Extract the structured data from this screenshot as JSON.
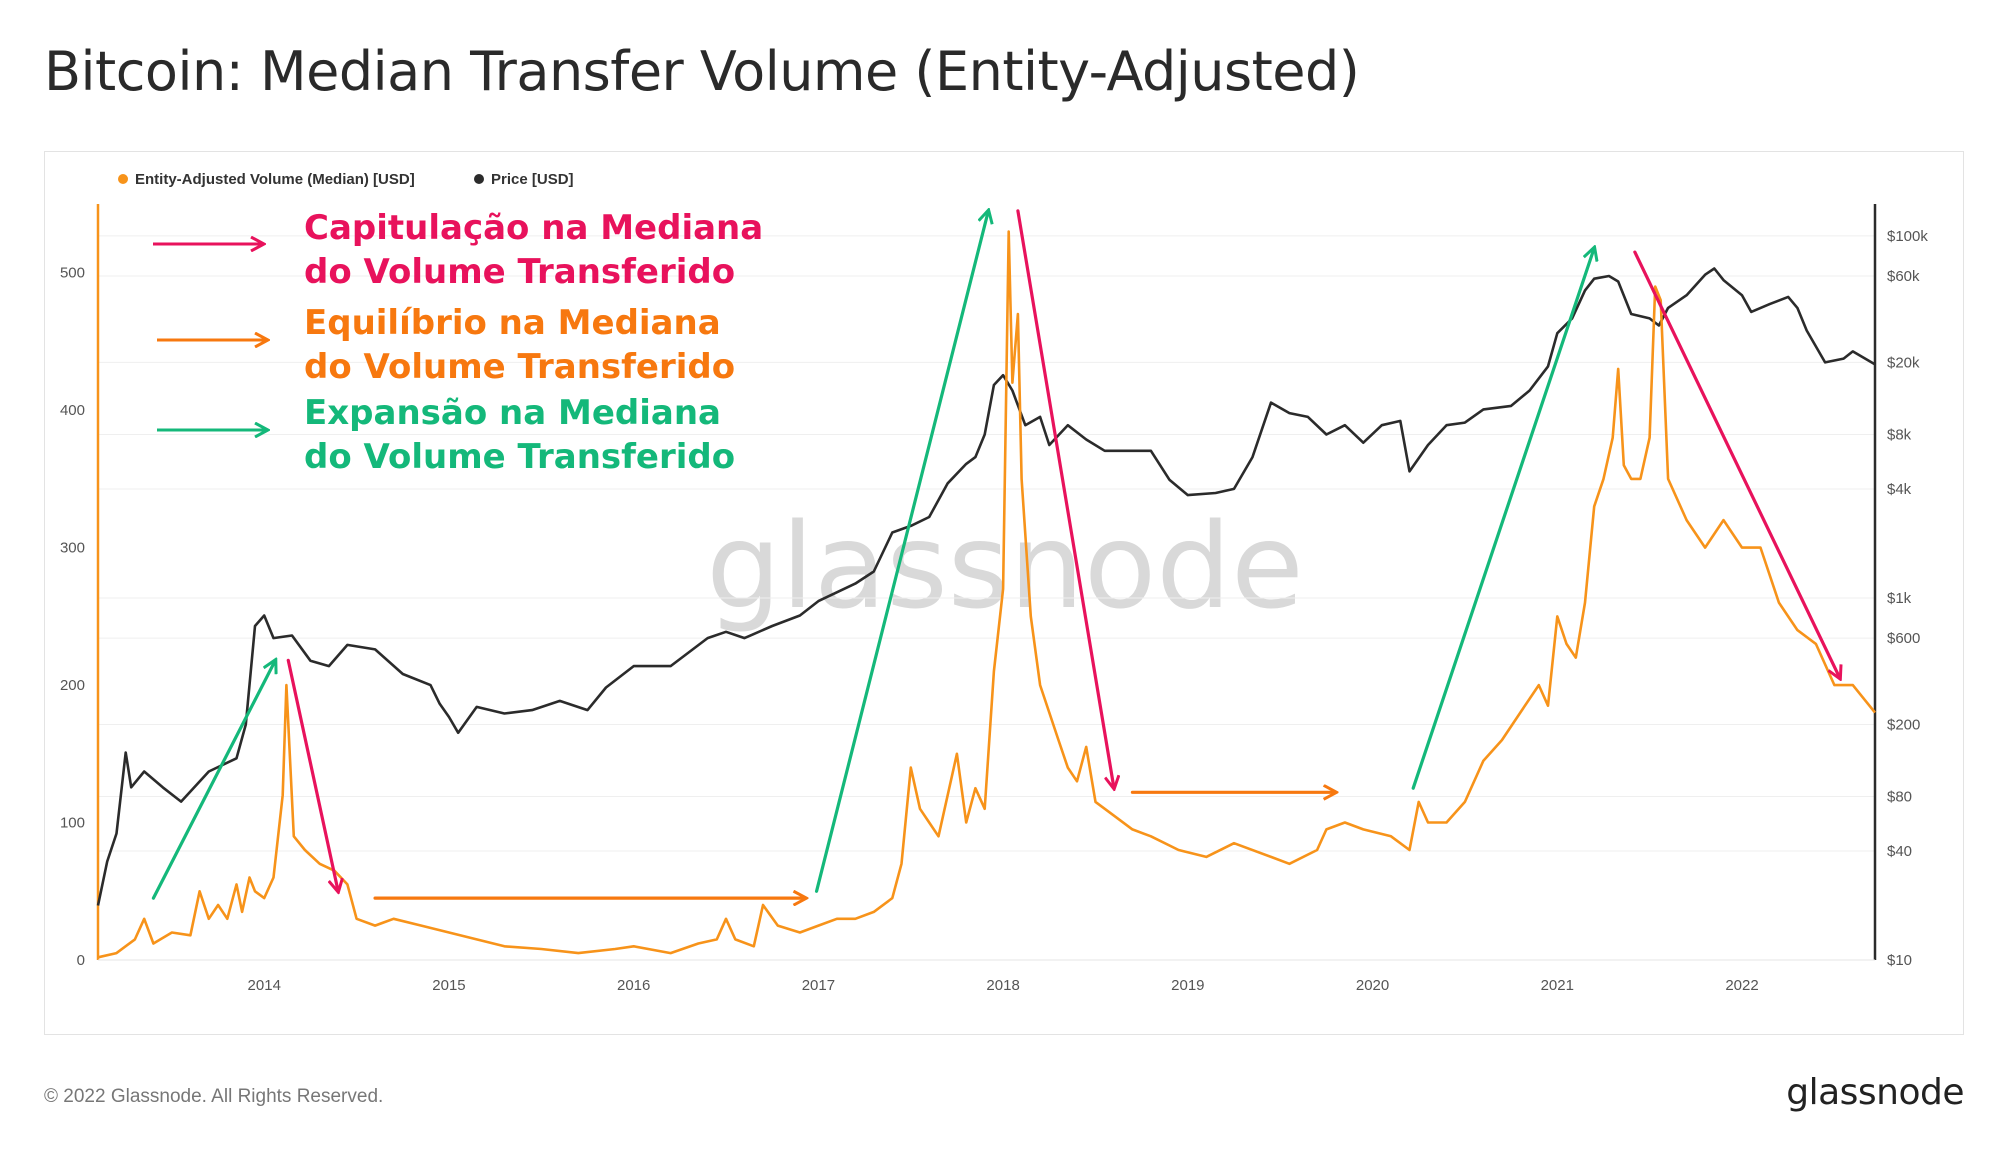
{
  "title": "Bitcoin: Median Transfer Volume (Entity-Adjusted)",
  "footer": {
    "copyright": "© 2022 Glassnode. All Rights Reserved.",
    "logo": "glassnode"
  },
  "watermark": "glassnode",
  "colors": {
    "volume": "#f7931a",
    "price": "#2b2b2b",
    "capitulation": "#e8125c",
    "equilibrium": "#f7780f",
    "expansion": "#14b87a"
  },
  "annotations_legend": [
    {
      "type": "capitulation",
      "lines": [
        "Capitulação na Mediana",
        "do Volume Transferido"
      ]
    },
    {
      "type": "equilibrium",
      "lines": [
        "Equilíbrio na Mediana",
        "do Volume Transferido"
      ]
    },
    {
      "type": "expansion",
      "lines": [
        "Expansão na Mediana",
        "do Volume Transferido"
      ]
    }
  ],
  "chart_data": {
    "type": "line",
    "legend": [
      {
        "name": "Entity-Adjusted Volume (Median) [USD]",
        "color": "#f7931a"
      },
      {
        "name": "Price [USD]",
        "color": "#2b2b2b"
      }
    ],
    "x_ticks": [
      "2014",
      "2015",
      "2016",
      "2017",
      "2018",
      "2019",
      "2020",
      "2021",
      "2022"
    ],
    "y_left": {
      "ticks": [
        "0",
        "100",
        "200",
        "300",
        "400",
        "500"
      ],
      "range": [
        0,
        550
      ]
    },
    "y_right": {
      "scale": "log",
      "tick_labels": [
        "$10",
        "$40",
        "$80",
        "$200",
        "$600",
        "$1k",
        "$4k",
        "$8k",
        "$20k",
        "$60k",
        "$100k"
      ],
      "tick_values": [
        10,
        40,
        80,
        200,
        600,
        1000,
        4000,
        8000,
        20000,
        60000,
        100000
      ],
      "range": [
        10,
        150000
      ]
    },
    "x_range": [
      2013.1,
      2022.72
    ],
    "series": [
      {
        "name": "Entity-Adjusted Volume (Median) [USD]",
        "axis": "left",
        "points": [
          [
            2013.1,
            2
          ],
          [
            2013.2,
            5
          ],
          [
            2013.3,
            15
          ],
          [
            2013.35,
            30
          ],
          [
            2013.4,
            12
          ],
          [
            2013.5,
            20
          ],
          [
            2013.6,
            18
          ],
          [
            2013.65,
            50
          ],
          [
            2013.7,
            30
          ],
          [
            2013.75,
            40
          ],
          [
            2013.8,
            30
          ],
          [
            2013.85,
            55
          ],
          [
            2013.88,
            35
          ],
          [
            2013.92,
            60
          ],
          [
            2013.95,
            50
          ],
          [
            2014.0,
            45
          ],
          [
            2014.05,
            60
          ],
          [
            2014.1,
            120
          ],
          [
            2014.12,
            200
          ],
          [
            2014.16,
            90
          ],
          [
            2014.22,
            80
          ],
          [
            2014.3,
            70
          ],
          [
            2014.38,
            65
          ],
          [
            2014.45,
            55
          ],
          [
            2014.5,
            30
          ],
          [
            2014.6,
            25
          ],
          [
            2014.7,
            30
          ],
          [
            2014.85,
            25
          ],
          [
            2015.0,
            20
          ],
          [
            2015.15,
            15
          ],
          [
            2015.3,
            10
          ],
          [
            2015.5,
            8
          ],
          [
            2015.7,
            5
          ],
          [
            2015.9,
            8
          ],
          [
            2016.0,
            10
          ],
          [
            2016.2,
            5
          ],
          [
            2016.35,
            12
          ],
          [
            2016.45,
            15
          ],
          [
            2016.5,
            30
          ],
          [
            2016.55,
            15
          ],
          [
            2016.65,
            10
          ],
          [
            2016.7,
            40
          ],
          [
            2016.78,
            25
          ],
          [
            2016.9,
            20
          ],
          [
            2017.0,
            25
          ],
          [
            2017.1,
            30
          ],
          [
            2017.2,
            30
          ],
          [
            2017.3,
            35
          ],
          [
            2017.4,
            45
          ],
          [
            2017.45,
            70
          ],
          [
            2017.5,
            140
          ],
          [
            2017.55,
            110
          ],
          [
            2017.6,
            100
          ],
          [
            2017.65,
            90
          ],
          [
            2017.75,
            150
          ],
          [
            2017.8,
            100
          ],
          [
            2017.85,
            125
          ],
          [
            2017.9,
            110
          ],
          [
            2017.95,
            210
          ],
          [
            2018.0,
            270
          ],
          [
            2018.03,
            530
          ],
          [
            2018.05,
            420
          ],
          [
            2018.08,
            470
          ],
          [
            2018.1,
            350
          ],
          [
            2018.15,
            250
          ],
          [
            2018.2,
            200
          ],
          [
            2018.25,
            180
          ],
          [
            2018.3,
            160
          ],
          [
            2018.35,
            140
          ],
          [
            2018.4,
            130
          ],
          [
            2018.45,
            155
          ],
          [
            2018.5,
            115
          ],
          [
            2018.6,
            105
          ],
          [
            2018.7,
            95
          ],
          [
            2018.8,
            90
          ],
          [
            2018.95,
            80
          ],
          [
            2019.1,
            75
          ],
          [
            2019.25,
            85
          ],
          [
            2019.45,
            75
          ],
          [
            2019.55,
            70
          ],
          [
            2019.7,
            80
          ],
          [
            2019.75,
            95
          ],
          [
            2019.85,
            100
          ],
          [
            2019.95,
            95
          ],
          [
            2020.1,
            90
          ],
          [
            2020.2,
            80
          ],
          [
            2020.25,
            115
          ],
          [
            2020.3,
            100
          ],
          [
            2020.4,
            100
          ],
          [
            2020.5,
            115
          ],
          [
            2020.6,
            145
          ],
          [
            2020.7,
            160
          ],
          [
            2020.8,
            180
          ],
          [
            2020.9,
            200
          ],
          [
            2020.95,
            185
          ],
          [
            2021.0,
            250
          ],
          [
            2021.05,
            230
          ],
          [
            2021.1,
            220
          ],
          [
            2021.15,
            260
          ],
          [
            2021.2,
            330
          ],
          [
            2021.25,
            350
          ],
          [
            2021.3,
            380
          ],
          [
            2021.33,
            430
          ],
          [
            2021.36,
            360
          ],
          [
            2021.4,
            350
          ],
          [
            2021.45,
            350
          ],
          [
            2021.5,
            380
          ],
          [
            2021.53,
            490
          ],
          [
            2021.56,
            480
          ],
          [
            2021.6,
            350
          ],
          [
            2021.7,
            320
          ],
          [
            2021.8,
            300
          ],
          [
            2021.9,
            320
          ],
          [
            2022.0,
            300
          ],
          [
            2022.1,
            300
          ],
          [
            2022.2,
            260
          ],
          [
            2022.3,
            240
          ],
          [
            2022.4,
            230
          ],
          [
            2022.5,
            200
          ],
          [
            2022.6,
            200
          ],
          [
            2022.72,
            180
          ]
        ]
      },
      {
        "name": "Price [USD]",
        "axis": "right",
        "points": [
          [
            2013.1,
            20
          ],
          [
            2013.15,
            35
          ],
          [
            2013.2,
            50
          ],
          [
            2013.25,
            140
          ],
          [
            2013.28,
            90
          ],
          [
            2013.35,
            110
          ],
          [
            2013.45,
            90
          ],
          [
            2013.55,
            75
          ],
          [
            2013.7,
            110
          ],
          [
            2013.85,
            130
          ],
          [
            2013.9,
            200
          ],
          [
            2013.95,
            700
          ],
          [
            2014.0,
            800
          ],
          [
            2014.05,
            600
          ],
          [
            2014.15,
            620
          ],
          [
            2014.25,
            450
          ],
          [
            2014.35,
            420
          ],
          [
            2014.45,
            550
          ],
          [
            2014.6,
            520
          ],
          [
            2014.75,
            380
          ],
          [
            2014.9,
            330
          ],
          [
            2014.95,
            260
          ],
          [
            2015.0,
            220
          ],
          [
            2015.05,
            180
          ],
          [
            2015.15,
            250
          ],
          [
            2015.3,
            230
          ],
          [
            2015.45,
            240
          ],
          [
            2015.6,
            270
          ],
          [
            2015.75,
            240
          ],
          [
            2015.85,
            320
          ],
          [
            2016.0,
            420
          ],
          [
            2016.2,
            420
          ],
          [
            2016.4,
            600
          ],
          [
            2016.5,
            650
          ],
          [
            2016.6,
            600
          ],
          [
            2016.75,
            700
          ],
          [
            2016.9,
            800
          ],
          [
            2017.0,
            960
          ],
          [
            2017.2,
            1200
          ],
          [
            2017.3,
            1400
          ],
          [
            2017.4,
            2300
          ],
          [
            2017.5,
            2500
          ],
          [
            2017.6,
            2800
          ],
          [
            2017.7,
            4300
          ],
          [
            2017.8,
            5500
          ],
          [
            2017.85,
            6000
          ],
          [
            2017.9,
            8000
          ],
          [
            2017.95,
            15000
          ],
          [
            2018.0,
            17000
          ],
          [
            2018.05,
            14000
          ],
          [
            2018.12,
            9000
          ],
          [
            2018.2,
            10000
          ],
          [
            2018.25,
            7000
          ],
          [
            2018.35,
            9000
          ],
          [
            2018.45,
            7500
          ],
          [
            2018.55,
            6500
          ],
          [
            2018.65,
            6500
          ],
          [
            2018.8,
            6500
          ],
          [
            2018.9,
            4500
          ],
          [
            2019.0,
            3700
          ],
          [
            2019.15,
            3800
          ],
          [
            2019.25,
            4000
          ],
          [
            2019.35,
            6000
          ],
          [
            2019.45,
            12000
          ],
          [
            2019.55,
            10500
          ],
          [
            2019.65,
            10000
          ],
          [
            2019.75,
            8000
          ],
          [
            2019.85,
            9000
          ],
          [
            2019.95,
            7200
          ],
          [
            2020.05,
            9000
          ],
          [
            2020.15,
            9500
          ],
          [
            2020.2,
            5000
          ],
          [
            2020.3,
            7000
          ],
          [
            2020.4,
            9000
          ],
          [
            2020.5,
            9300
          ],
          [
            2020.6,
            11000
          ],
          [
            2020.75,
            11500
          ],
          [
            2020.85,
            14000
          ],
          [
            2020.95,
            19000
          ],
          [
            2021.0,
            29000
          ],
          [
            2021.08,
            35000
          ],
          [
            2021.15,
            50000
          ],
          [
            2021.2,
            58000
          ],
          [
            2021.28,
            60000
          ],
          [
            2021.33,
            56000
          ],
          [
            2021.4,
            37000
          ],
          [
            2021.5,
            35000
          ],
          [
            2021.55,
            32000
          ],
          [
            2021.6,
            40000
          ],
          [
            2021.7,
            47000
          ],
          [
            2021.8,
            61000
          ],
          [
            2021.85,
            66000
          ],
          [
            2021.9,
            57000
          ],
          [
            2022.0,
            47000
          ],
          [
            2022.05,
            38000
          ],
          [
            2022.15,
            42000
          ],
          [
            2022.25,
            46000
          ],
          [
            2022.3,
            40000
          ],
          [
            2022.35,
            30000
          ],
          [
            2022.45,
            20000
          ],
          [
            2022.55,
            21000
          ],
          [
            2022.6,
            23000
          ],
          [
            2022.72,
            19500
          ]
        ]
      }
    ],
    "arrows": [
      {
        "type": "expansion",
        "from": [
          2013.4,
          "vol",
          45
        ],
        "to": [
          2014.06,
          "vol",
          218
        ]
      },
      {
        "type": "capitulation",
        "from": [
          2014.13,
          "vol",
          218
        ],
        "to": [
          2014.4,
          "vol",
          50
        ]
      },
      {
        "type": "equilibrium",
        "from": [
          2014.6,
          "vol",
          45
        ],
        "to": [
          2016.93,
          "vol",
          45
        ]
      },
      {
        "type": "expansion",
        "from": [
          2016.99,
          "vol",
          50
        ],
        "to": [
          2017.92,
          "vol",
          545
        ]
      },
      {
        "type": "capitulation",
        "from": [
          2018.08,
          "vol",
          545
        ],
        "to": [
          2018.6,
          "vol",
          125
        ]
      },
      {
        "type": "equilibrium",
        "from": [
          2018.7,
          "vol",
          122
        ],
        "to": [
          2019.8,
          "vol",
          122
        ]
      },
      {
        "type": "expansion",
        "from": [
          2020.22,
          "vol",
          125
        ],
        "to": [
          2021.2,
          "vol",
          518
        ]
      },
      {
        "type": "capitulation",
        "from": [
          2021.42,
          "vol",
          515
        ],
        "to": [
          2022.53,
          "vol",
          205
        ]
      }
    ]
  }
}
